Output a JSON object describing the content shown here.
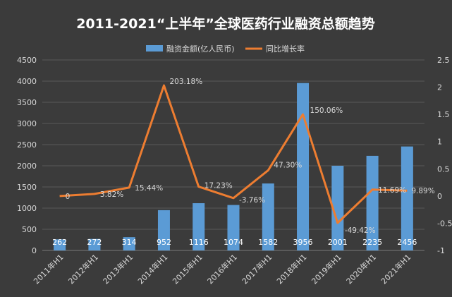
{
  "chart_data": {
    "type": "bar",
    "title": "2011-2021“上半年”全球医药行业融资总额趋势",
    "categories": [
      "2011年H1",
      "2012年H1",
      "2013年H1",
      "2014年H1",
      "2015年H1",
      "2016年H1",
      "2017年H1",
      "2018年H1",
      "2019年H1",
      "2020年H1",
      "2021年H1"
    ],
    "series": [
      {
        "name": "融资金额(亿人民币)",
        "type": "bar",
        "axis": "left",
        "color": "#5b9bd5",
        "values": [
          262,
          272,
          314,
          952,
          1116,
          1074,
          1582,
          3956,
          2001,
          2235,
          2456
        ],
        "labels": [
          "262",
          "272",
          "314",
          "952",
          "1116",
          "1074",
          "1582",
          "3956",
          "2001",
          "2235",
          "2456"
        ]
      },
      {
        "name": "同比增长率",
        "type": "line",
        "axis": "right",
        "color": "#ed7d31",
        "values": [
          0,
          0.0382,
          0.1544,
          2.0318,
          0.1723,
          -0.0376,
          0.473,
          1.5006,
          -0.4942,
          0.1169,
          0.0989
        ],
        "labels": [
          "0",
          "3.82%",
          "15.44%",
          "203.18%",
          "17.23%",
          "-3.76%",
          "47.30%",
          "150.06%",
          "-49.42%",
          "11.69%",
          "9.89%"
        ]
      }
    ],
    "y_left": {
      "min": 0,
      "max": 4500,
      "ticks": [
        "0",
        "500",
        "1000",
        "1500",
        "2000",
        "2500",
        "3000",
        "3500",
        "4000",
        "4500"
      ]
    },
    "y_right": {
      "min": -1,
      "max": 2.5,
      "ticks": [
        "-1",
        "-0.5",
        "0",
        "0.5",
        "1",
        "1.5",
        "2",
        "2.5"
      ]
    },
    "grid": true,
    "legend": "top-center"
  }
}
